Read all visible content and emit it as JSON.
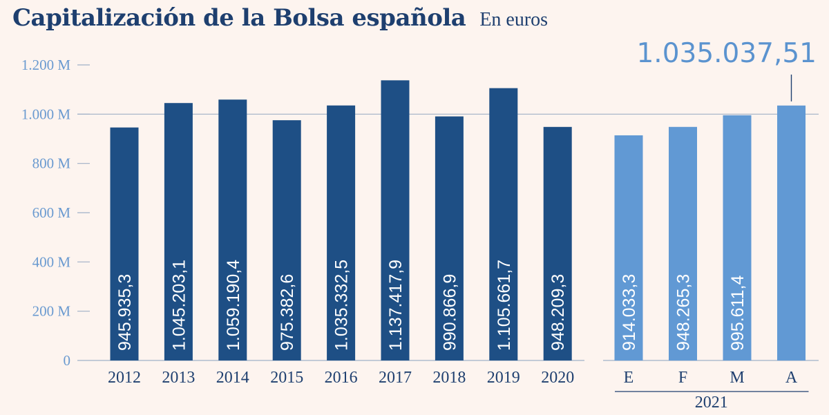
{
  "header": {
    "title": "Capitalización de la Bolsa española",
    "subtitle": "En euros"
  },
  "colors": {
    "background": "#fdf4ef",
    "annual_bar": "#1e4f85",
    "monthly_bar": "#6199d4",
    "title": "#1e3f6f",
    "axis_text": "#6a9ad0",
    "gridline": "#9fb0c6"
  },
  "chart_data": {
    "type": "bar",
    "title": "Capitalización de la Bolsa española",
    "subtitle": "En euros",
    "xlabel": "",
    "ylabel": "",
    "ylim": [
      0,
      1200
    ],
    "unit": "millones de euros",
    "yticks": [
      {
        "value": 0,
        "label": "0"
      },
      {
        "value": 200,
        "label": "200 M"
      },
      {
        "value": 400,
        "label": "400 M"
      },
      {
        "value": 600,
        "label": "600 M"
      },
      {
        "value": 800,
        "label": "800 M"
      },
      {
        "value": 1000,
        "label": "1.000 M"
      },
      {
        "value": 1200,
        "label": "1.200 M"
      }
    ],
    "reference_line": 1000,
    "groups": [
      {
        "name": "annual",
        "group_label": "",
        "categories": [
          "2012",
          "2013",
          "2014",
          "2015",
          "2016",
          "2017",
          "2018",
          "2019",
          "2020"
        ],
        "values": [
          945.9353,
          1045.2031,
          1059.1904,
          975.3826,
          1035.3325,
          1137.4179,
          990.8669,
          1105.6617,
          948.2093
        ],
        "value_labels": [
          "945.935,3",
          "1.045.203,1",
          "1.059.190,4",
          "975.382,6",
          "1.035.332,5",
          "1.137.417,9",
          "990.866,9",
          "1.105.661,7",
          "948.209,3"
        ]
      },
      {
        "name": "monthly",
        "group_label": "2021",
        "categories": [
          "E",
          "F",
          "M",
          "A"
        ],
        "values": [
          914.0333,
          948.2653,
          995.6114,
          1035.03751
        ],
        "value_labels": [
          "914.033,3",
          "948.265,3",
          "995.611,4",
          ""
        ]
      }
    ],
    "highlight": {
      "category": "A",
      "label": "1.035.037,51"
    }
  }
}
